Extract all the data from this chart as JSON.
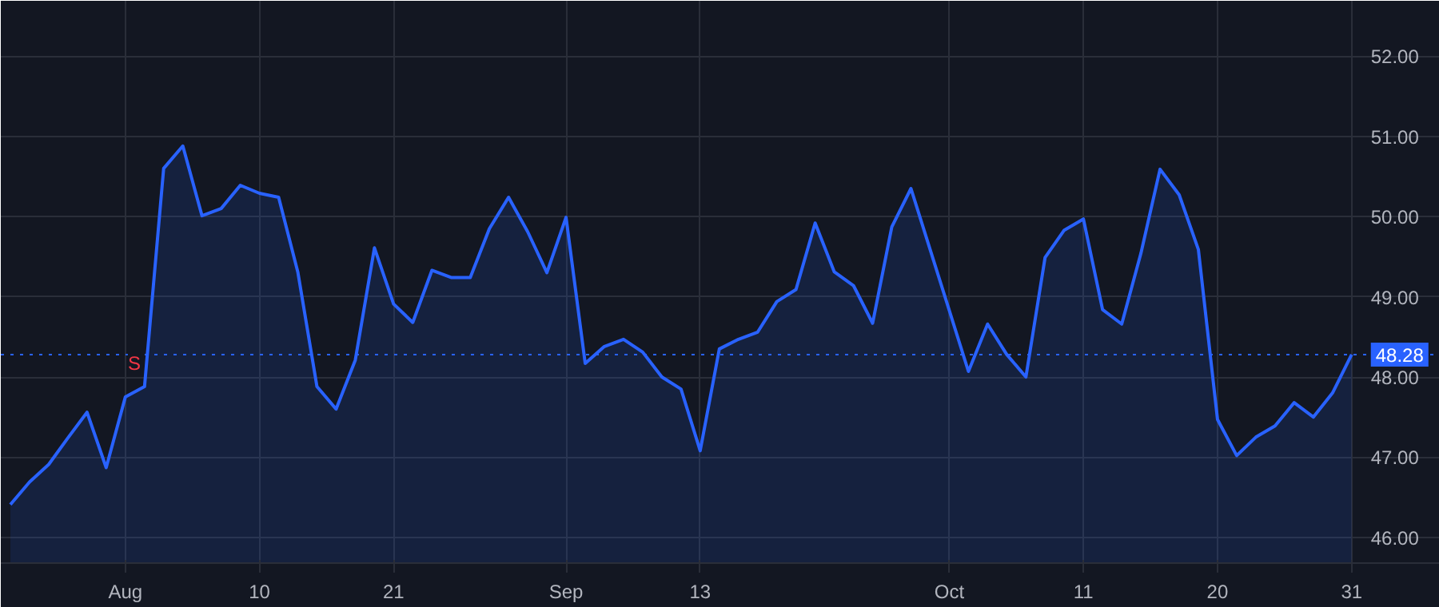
{
  "chart_data": {
    "type": "area",
    "categories": [
      null,
      null,
      null,
      null,
      null,
      null,
      "Aug",
      null,
      null,
      null,
      null,
      null,
      null,
      "10",
      null,
      null,
      null,
      null,
      null,
      null,
      "21",
      null,
      null,
      null,
      null,
      null,
      null,
      null,
      null,
      "Sep",
      null,
      null,
      null,
      null,
      null,
      null,
      "13",
      null,
      null,
      null,
      null,
      null,
      null,
      null,
      null,
      null,
      null,
      null,
      null,
      "Oct",
      null,
      null,
      null,
      null,
      null,
      null,
      "11",
      null,
      null,
      null,
      null,
      null,
      null,
      "20",
      null,
      null,
      null,
      null,
      null,
      null,
      "31"
    ],
    "series": [
      {
        "color": "#2962ff",
        "values": [
          46.41,
          46.69,
          46.91,
          47.24,
          47.56,
          46.87,
          47.75,
          47.88,
          50.6,
          50.88,
          50.01,
          50.1,
          50.39,
          50.29,
          50.24,
          49.31,
          47.88,
          47.6,
          48.21,
          49.61,
          48.91,
          48.68,
          49.33,
          49.24,
          49.24,
          49.85,
          50.24,
          49.81,
          49.3,
          49.99,
          48.17,
          48.38,
          48.47,
          48.31,
          48.0,
          47.85,
          47.08,
          48.35,
          48.47,
          48.56,
          48.94,
          49.09,
          49.92,
          49.31,
          49.14,
          48.67,
          49.87,
          50.35,
          49.59,
          48.83,
          48.07,
          48.66,
          48.28,
          48.0,
          49.49,
          49.83,
          49.97,
          48.84,
          48.66,
          49.54,
          50.59,
          50.27,
          49.59,
          47.47,
          47.02,
          47.25,
          47.39,
          47.68,
          47.5,
          47.8,
          48.28
        ]
      }
    ],
    "ylim": [
      45.68,
      52.69
    ],
    "yticks": [
      {
        "value": 46,
        "label": "46.00"
      },
      {
        "value": 47,
        "label": "47.00"
      },
      {
        "value": 48,
        "label": "48.00"
      },
      {
        "value": 49,
        "label": "49.00"
      },
      {
        "value": 50,
        "label": "50.00"
      },
      {
        "value": 51,
        "label": "51.00"
      },
      {
        "value": 52,
        "label": "52.00"
      }
    ],
    "grid": true,
    "line_style": "solid",
    "ref_lines": [
      {
        "axis": "y",
        "value": 48.28,
        "label": "48.28",
        "color": "#2962ff",
        "line_style": "dotted"
      }
    ],
    "annotations": [
      {
        "text": "S",
        "y": 47.88
      }
    ]
  }
}
